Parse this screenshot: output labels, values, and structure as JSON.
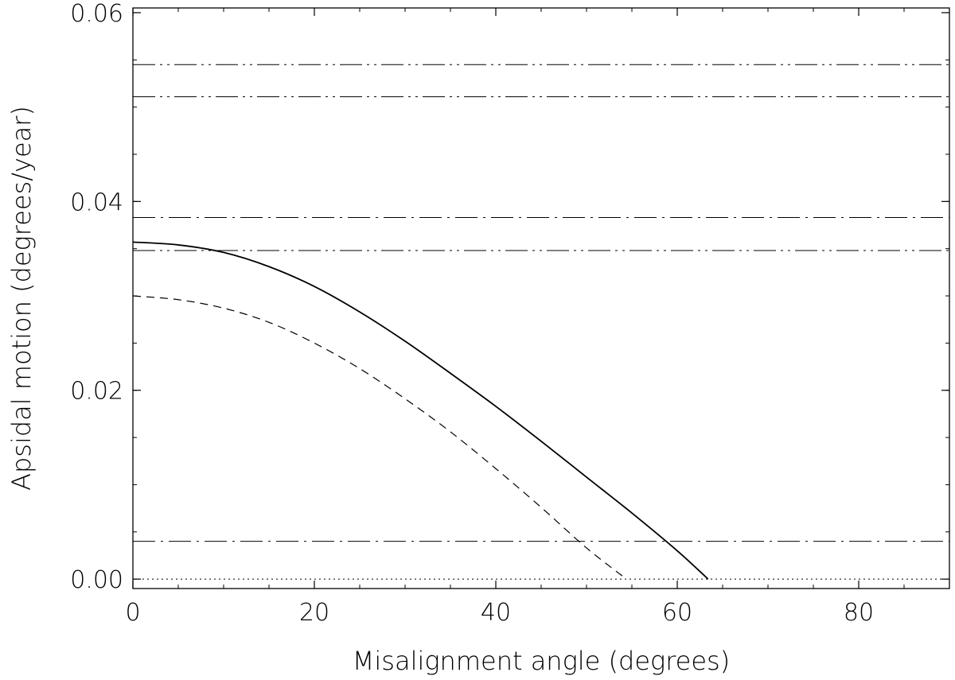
{
  "chart_data": {
    "type": "line",
    "title": "",
    "xlabel": "Misalignment angle (degrees)",
    "ylabel": "Apsidal motion (degrees/year)",
    "xlim": [
      0,
      90
    ],
    "ylim": [
      -0.001,
      0.0605
    ],
    "x_ticks": [
      0,
      20,
      40,
      60,
      80
    ],
    "x_tick_labels": [
      "0",
      "20",
      "40",
      "60",
      "80"
    ],
    "y_ticks": [
      0,
      0.02,
      0.04,
      0.06
    ],
    "y_tick_labels": [
      "0.00",
      "0.02",
      "0.04",
      "0.06"
    ],
    "x_minor_step": 5,
    "y_minor_step": 0.005,
    "grid": false,
    "legend": "none",
    "series": [
      {
        "style": "solid",
        "x": [
          0,
          5,
          10,
          15,
          20,
          25,
          30,
          35,
          40,
          45,
          50,
          55,
          60,
          63.4
        ],
        "y": [
          0.0357,
          0.0354,
          0.0346,
          0.0331,
          0.031,
          0.0283,
          0.0252,
          0.0218,
          0.0183,
          0.0146,
          0.0108,
          0.007,
          0.003,
          0.0
        ]
      },
      {
        "style": "dashed",
        "x": [
          0,
          5,
          10,
          15,
          20,
          25,
          30,
          35,
          40,
          45,
          50,
          54.4
        ],
        "y": [
          0.03,
          0.0296,
          0.0287,
          0.0272,
          0.025,
          0.0223,
          0.0191,
          0.0156,
          0.0117,
          0.0076,
          0.0033,
          0.0
        ]
      }
    ],
    "reference_lines": [
      {
        "y": 0.0545,
        "style": "dash-dot-dot"
      },
      {
        "y": 0.0511,
        "style": "dash-dot-dot"
      },
      {
        "y": 0.0383,
        "style": "dash-dot"
      },
      {
        "y": 0.0348,
        "style": "dash-dot-dot"
      },
      {
        "y": 0.004,
        "style": "dash-dot"
      },
      {
        "y": 0.0,
        "style": "dotted"
      }
    ]
  }
}
